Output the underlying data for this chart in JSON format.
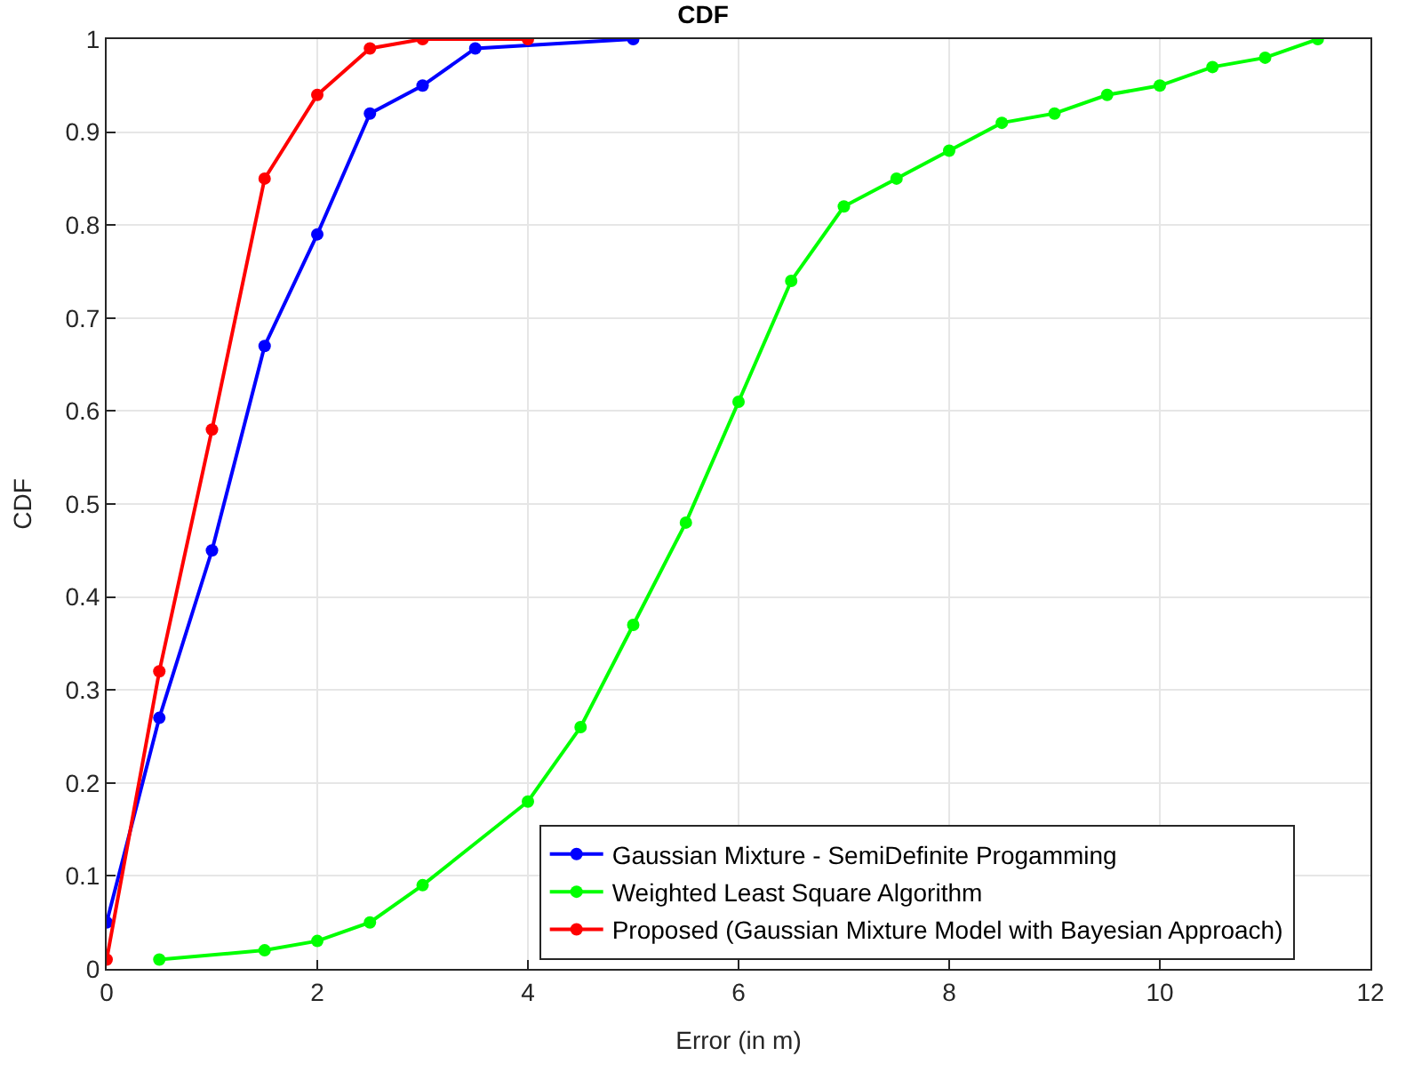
{
  "chart_data": {
    "type": "line",
    "title": "CDF",
    "xlabel": "Error (in m)",
    "ylabel": "CDF",
    "xlim": [
      0,
      12
    ],
    "xticks": [
      0,
      2,
      4,
      6,
      8,
      10,
      12
    ],
    "ylim": [
      0,
      1
    ],
    "yticks": [
      0,
      0.1,
      0.2,
      0.3,
      0.4,
      0.5,
      0.6,
      0.7,
      0.8,
      0.9,
      1
    ],
    "grid": true,
    "legend": "bottom right",
    "marker": "circle",
    "line_style": "solid",
    "series": [
      {
        "name": "Gaussian Mixture - SemiDefinite Progamming",
        "color": "#0000ff",
        "x": [
          0,
          0.5,
          1,
          1.5,
          2,
          2.5,
          3,
          3.5,
          5
        ],
        "values": [
          0.05,
          0.27,
          0.45,
          0.67,
          0.79,
          0.92,
          0.95,
          0.99,
          1.0
        ]
      },
      {
        "name": "Weighted Least Square Algorithm",
        "color": "#00ff00",
        "x": [
          0.5,
          1.5,
          2,
          2.5,
          3,
          4,
          4.5,
          5,
          5.5,
          6,
          6.5,
          7,
          7.5,
          8,
          8.5,
          9,
          9.5,
          10,
          10.5,
          11,
          11.5
        ],
        "values": [
          0.01,
          0.02,
          0.03,
          0.05,
          0.09,
          0.18,
          0.26,
          0.37,
          0.48,
          0.61,
          0.74,
          0.82,
          0.85,
          0.88,
          0.91,
          0.92,
          0.94,
          0.95,
          0.97,
          0.98,
          1.0
        ]
      },
      {
        "name": "Proposed (Gaussian Mixture Model with Bayesian Approach)",
        "color": "#ff0000",
        "x": [
          0,
          0.5,
          1,
          1.5,
          2,
          2.5,
          3,
          4
        ],
        "values": [
          0.01,
          0.32,
          0.58,
          0.85,
          0.94,
          0.99,
          1.0,
          1.0
        ]
      }
    ]
  }
}
